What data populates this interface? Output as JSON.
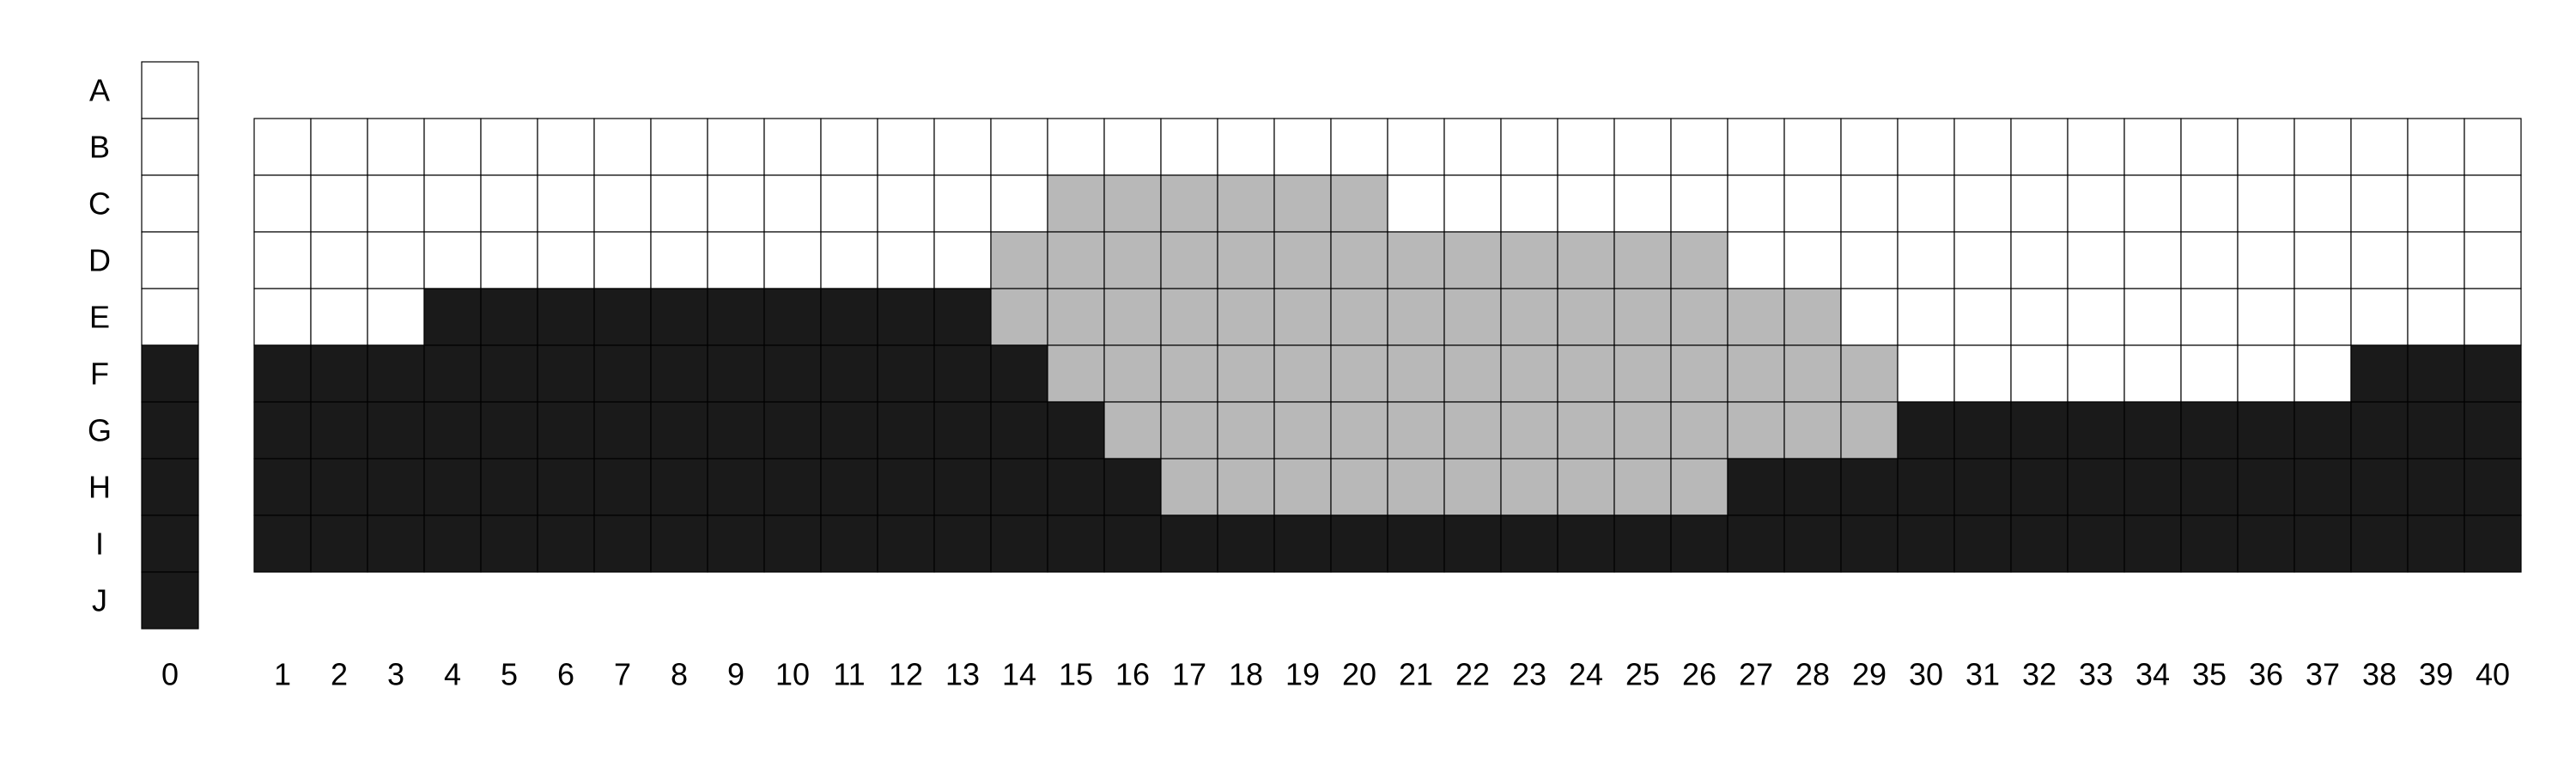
{
  "row_labels": [
    "A",
    "B",
    "C",
    "D",
    "E",
    "F",
    "G",
    "H",
    "I",
    "J"
  ],
  "column_zero_label": "0",
  "column_labels": [
    "1",
    "2",
    "3",
    "4",
    "5",
    "6",
    "7",
    "8",
    "9",
    "10",
    "11",
    "12",
    "13",
    "14",
    "15",
    "16",
    "17",
    "18",
    "19",
    "20",
    "21",
    "22",
    "23",
    "24",
    "25",
    "26",
    "27",
    "28",
    "29",
    "30",
    "31",
    "32",
    "33",
    "34",
    "35",
    "36",
    "37",
    "38",
    "39",
    "40"
  ],
  "colors": {
    "empty": "#ffffff",
    "filled": "#1a1a1a",
    "highlighted": "#b8b8b8",
    "gridline": "#000000"
  },
  "legend_codes": {
    "w": "empty",
    "b": "filled",
    "g": "highlighted"
  },
  "column_zero_cells": "wwwwwbbbbb",
  "grid_rows": [
    {
      "row": "B",
      "cells": "wwwwwwwwwwwwwwwwwwwwwwwwwwwwwwwwwwwwwwww"
    },
    {
      "row": "C",
      "cells": "wwwwwwwwwwwwwwggggggwwwwwwwwwwwwwwwwwwww"
    },
    {
      "row": "D",
      "cells": "wwwwwwwwwwwwwgggggggggggggwwwwwwwwwwwwww"
    },
    {
      "row": "E",
      "cells": "wwwbbbbbbbbbbgggggggggggggggwwwwwwwwwwww"
    },
    {
      "row": "F",
      "cells": "bbbbbbbbbbbbbbgggggggggggggggwwwwwwwwbbb"
    },
    {
      "row": "G",
      "cells": "bbbbbbbbbbbbbbbggggggggggggggbbbbbbbbbbb"
    },
    {
      "row": "H",
      "cells": "bbbbbbbbbbbbbbbbggggggggggbbbbbbbbbbbbbb"
    },
    {
      "row": "I",
      "cells": "bbbbbbbbbbbbbbbbbbbbbbbbbbbbbbbbbbbbbbbb"
    }
  ]
}
